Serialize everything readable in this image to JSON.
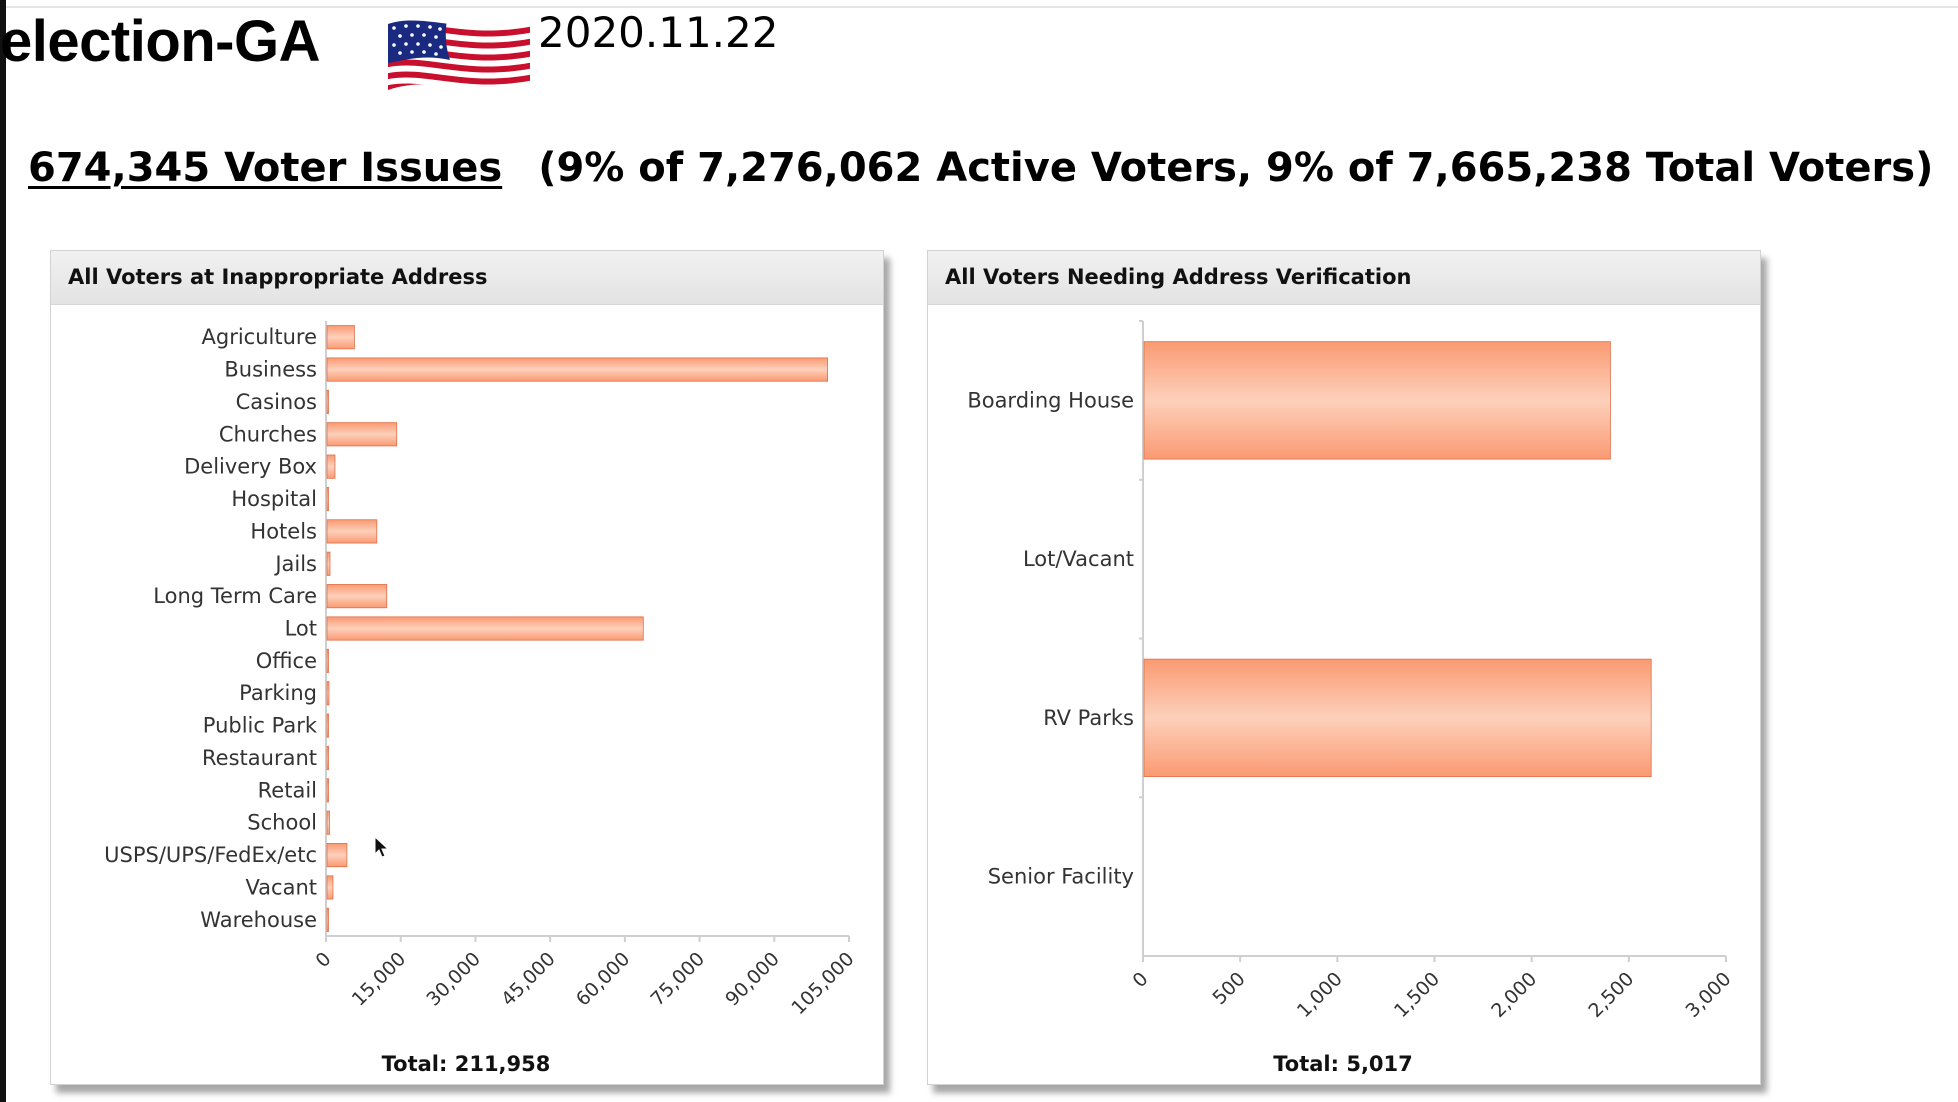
{
  "header": {
    "app_title": "election-GA",
    "date": "2020.11.22",
    "issues_link": "674,345 Voter Issues",
    "summary": "(9% of 7,276,062 Active Voters, 9% of 7,665,238 Total Voters)"
  },
  "colors": {
    "bar": "#fa9a72",
    "bar_light": "#fdd0bb",
    "bar_stroke": "#e0704a"
  },
  "chart_data": [
    {
      "type": "bar",
      "orientation": "horizontal",
      "title": "All Voters at Inappropriate Address",
      "categories": [
        "Agriculture",
        "Business",
        "Casinos",
        "Churches",
        "Delivery Box",
        "Hospital",
        "Hotels",
        "Jails",
        "Long Term Care",
        "Lot",
        "Office",
        "Parking",
        "Public Park",
        "Restaurant",
        "Retail",
        "School",
        "USPS/UPS/FedEx/etc",
        "Vacant",
        "Warehouse"
      ],
      "values": [
        5500,
        100500,
        100,
        14000,
        1600,
        300,
        10000,
        600,
        12000,
        63500,
        150,
        400,
        100,
        100,
        150,
        500,
        4000,
        1200,
        250
      ],
      "xlim": [
        0,
        105000
      ],
      "ticks": [
        0,
        15000,
        30000,
        45000,
        60000,
        75000,
        90000,
        105000
      ],
      "tick_labels": [
        "0",
        "15,000",
        "30,000",
        "45,000",
        "60,000",
        "75,000",
        "90,000",
        "105,000"
      ],
      "total_label": "Total:",
      "total_value": "211,958"
    },
    {
      "type": "bar",
      "orientation": "horizontal",
      "title": "All Voters Needing Address Verification",
      "categories": [
        "Boarding House",
        "Lot/Vacant",
        "RV Parks",
        "Senior Facility"
      ],
      "values": [
        2400,
        0,
        2610,
        0
      ],
      "xlim": [
        0,
        3000
      ],
      "ticks": [
        0,
        500,
        1000,
        1500,
        2000,
        2500,
        3000
      ],
      "tick_labels": [
        "0",
        "500",
        "1,000",
        "1,500",
        "2,000",
        "2,500",
        "3,000"
      ],
      "total_label": "Total:",
      "total_value": "5,017"
    }
  ]
}
